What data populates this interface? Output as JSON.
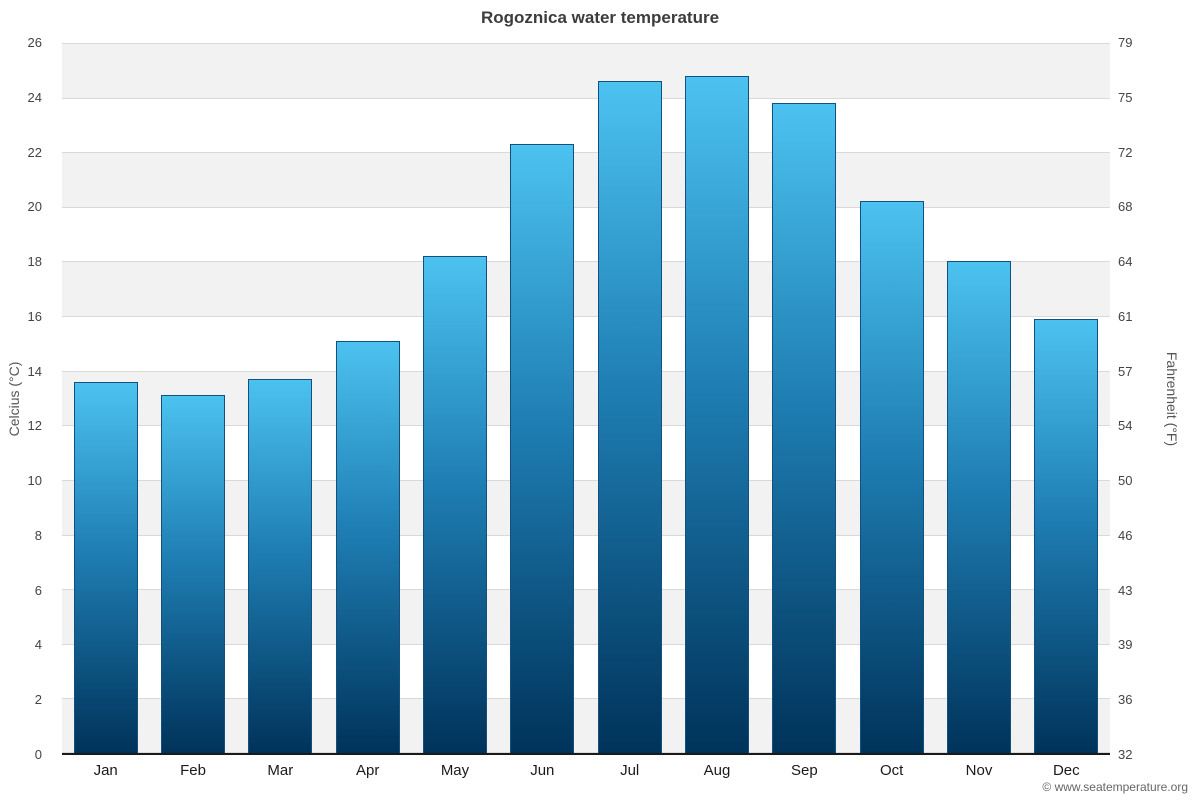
{
  "chart_data": {
    "type": "bar",
    "title": "Rogoznica water temperature",
    "categories": [
      "Jan",
      "Feb",
      "Mar",
      "Apr",
      "May",
      "Jun",
      "Jul",
      "Aug",
      "Sep",
      "Oct",
      "Nov",
      "Dec"
    ],
    "values": [
      13.6,
      13.1,
      13.7,
      15.1,
      18.2,
      22.3,
      24.6,
      24.8,
      23.8,
      20.2,
      18.0,
      15.9
    ],
    "ylabel_left": "Celcius (°C)",
    "ylabel_right": "Fahrenheit (°F)",
    "yticks_celsius": [
      0,
      2,
      4,
      6,
      8,
      10,
      12,
      14,
      16,
      18,
      20,
      22,
      24,
      26
    ],
    "yticks_fahrenheit": [
      32,
      36,
      39,
      43,
      46,
      50,
      54,
      57,
      61,
      64,
      68,
      72,
      75,
      79
    ],
    "ylim": [
      0,
      26
    ],
    "legend": "none",
    "grid": "on",
    "bar_color_top": "#4cc2f0",
    "bar_color_bottom": "#00335a",
    "bar_border_color": "#14507e",
    "band_color": "#f2f2f2",
    "footer": "© www.seatemperature.org"
  }
}
